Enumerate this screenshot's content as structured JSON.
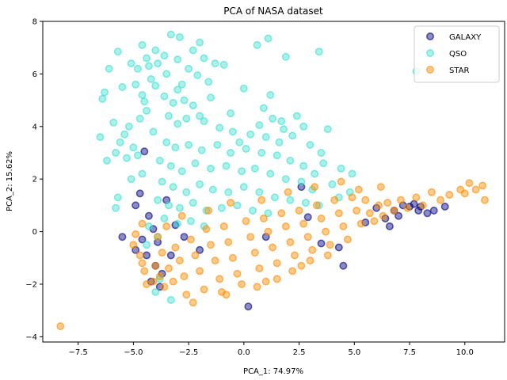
{
  "chart_data": {
    "type": "scatter",
    "title": "PCA of NASA dataset",
    "xlabel": "PCA_1: 74.97%",
    "ylabel": "PCA_2: 15.62%",
    "xlim": [
      -9.1,
      11.8
    ],
    "ylim": [
      -4.2,
      8.0
    ],
    "xticks": [
      -7.5,
      -5.0,
      -2.5,
      0.0,
      2.5,
      5.0,
      7.5,
      10.0
    ],
    "xtick_labels": [
      "−7.5",
      "−5.0",
      "−2.5",
      "0.0",
      "2.5",
      "5.0",
      "7.5",
      "10.0"
    ],
    "yticks": [
      -4,
      -2,
      0,
      2,
      4,
      6,
      8
    ],
    "ytick_labels": [
      "−4",
      "−2",
      "0",
      "2",
      "4",
      "6",
      "8"
    ],
    "grid": false,
    "legend_position": "top-right",
    "series": [
      {
        "name": "GALAXY",
        "color": "#000080",
        "alpha": 0.5,
        "points": [
          [
            -4.5,
            3.05
          ],
          [
            -4.7,
            1.45
          ],
          [
            -4.9,
            1.0
          ],
          [
            -4.3,
            0.6
          ],
          [
            -5.5,
            -0.2
          ],
          [
            -4.9,
            -0.7
          ],
          [
            -4.4,
            -0.9
          ],
          [
            -4.0,
            -1.3
          ],
          [
            -4.2,
            -1.9
          ],
          [
            -3.7,
            -1.6
          ],
          [
            -3.5,
            1.2
          ],
          [
            -4.1,
            0.1
          ],
          [
            -3.9,
            -0.4
          ],
          [
            -4.6,
            -0.3
          ],
          [
            -3.3,
            -0.9
          ],
          [
            -3.8,
            -2.1
          ],
          [
            0.2,
            -2.85
          ],
          [
            4.5,
            -1.3
          ],
          [
            4.3,
            -0.6
          ],
          [
            2.6,
            1.7
          ],
          [
            6.0,
            0.9
          ],
          [
            6.4,
            0.5
          ],
          [
            6.8,
            0.8
          ],
          [
            7.2,
            1.0
          ],
          [
            7.5,
            0.95
          ],
          [
            7.9,
            0.8
          ],
          [
            8.3,
            0.7
          ],
          [
            8.6,
            0.8
          ],
          [
            9.1,
            0.95
          ],
          [
            7.0,
            0.6
          ],
          [
            6.6,
            0.2
          ],
          [
            5.5,
            0.35
          ],
          [
            7.7,
            1.05
          ],
          [
            8.0,
            0.95
          ],
          [
            3.5,
            -0.45
          ],
          [
            2.9,
            0.55
          ],
          [
            -2.7,
            -0.2
          ],
          [
            -3.1,
            0.25
          ],
          [
            -2.0,
            -0.7
          ],
          [
            1.0,
            -0.2
          ]
        ]
      },
      {
        "name": "QSO",
        "color": "#40E0D0",
        "alpha": 0.5,
        "points": [
          [
            -3.3,
            7.5
          ],
          [
            -2.9,
            7.4
          ],
          [
            -2.0,
            7.2
          ],
          [
            0.6,
            7.1
          ],
          [
            1.1,
            7.35
          ],
          [
            -4.6,
            7.1
          ],
          [
            -4.0,
            6.9
          ],
          [
            -3.6,
            6.7
          ],
          [
            -4.4,
            6.6
          ],
          [
            -5.1,
            6.4
          ],
          [
            -4.8,
            6.2
          ],
          [
            -3.9,
            6.4
          ],
          [
            -3.5,
            6.0
          ],
          [
            -4.2,
            5.8
          ],
          [
            -4.9,
            5.6
          ],
          [
            -5.5,
            5.5
          ],
          [
            -6.3,
            5.3
          ],
          [
            -6.4,
            5.05
          ],
          [
            -5.7,
            6.85
          ],
          [
            -6.1,
            6.2
          ],
          [
            -1.8,
            6.6
          ],
          [
            -1.3,
            6.4
          ],
          [
            -0.9,
            6.35
          ],
          [
            1.9,
            6.65
          ],
          [
            3.4,
            6.85
          ],
          [
            -2.5,
            6.2
          ],
          [
            -2.1,
            5.95
          ],
          [
            -1.6,
            5.7
          ],
          [
            0.0,
            5.45
          ],
          [
            1.2,
            5.2
          ],
          [
            -3.0,
            5.4
          ],
          [
            -2.7,
            5.0
          ],
          [
            -2.3,
            4.8
          ],
          [
            -4.4,
            4.6
          ],
          [
            -4.7,
            4.3
          ],
          [
            -5.2,
            4.0
          ],
          [
            -5.9,
            4.15
          ],
          [
            -5.4,
            3.7
          ],
          [
            -5.6,
            3.4
          ],
          [
            -5.0,
            3.2
          ],
          [
            -4.8,
            2.9
          ],
          [
            -5.3,
            2.8
          ],
          [
            -4.6,
            2.2
          ],
          [
            -5.1,
            2.0
          ],
          [
            -5.7,
            1.3
          ],
          [
            -5.8,
            0.9
          ],
          [
            -3.4,
            4.4
          ],
          [
            -3.0,
            4.1
          ],
          [
            -2.6,
            4.3
          ],
          [
            -1.8,
            4.2
          ],
          [
            -1.1,
            3.95
          ],
          [
            -0.5,
            3.8
          ],
          [
            0.3,
            3.7
          ],
          [
            1.0,
            3.6
          ],
          [
            1.6,
            3.4
          ],
          [
            2.2,
            3.65
          ],
          [
            2.7,
            4.0
          ],
          [
            2.4,
            4.4
          ],
          [
            1.7,
            4.2
          ],
          [
            0.7,
            4.05
          ],
          [
            -3.5,
            3.4
          ],
          [
            -3.1,
            3.2
          ],
          [
            -2.5,
            3.3
          ],
          [
            -1.9,
            3.1
          ],
          [
            -1.2,
            3.3
          ],
          [
            -0.6,
            3.0
          ],
          [
            0.1,
            3.15
          ],
          [
            0.8,
            3.0
          ],
          [
            1.5,
            2.9
          ],
          [
            2.1,
            2.7
          ],
          [
            2.7,
            2.5
          ],
          [
            3.2,
            2.2
          ],
          [
            3.6,
            2.6
          ],
          [
            4.0,
            1.8
          ],
          [
            4.3,
            1.3
          ],
          [
            -3.8,
            2.7
          ],
          [
            -3.3,
            2.5
          ],
          [
            -2.8,
            2.3
          ],
          [
            -2.2,
            2.6
          ],
          [
            -1.5,
            2.4
          ],
          [
            -0.8,
            2.5
          ],
          [
            -0.1,
            2.3
          ],
          [
            0.5,
            2.4
          ],
          [
            1.2,
            2.2
          ],
          [
            1.9,
            2.0
          ],
          [
            2.6,
            1.9
          ],
          [
            3.1,
            1.6
          ],
          [
            -3.7,
            1.9
          ],
          [
            -3.2,
            1.7
          ],
          [
            -2.6,
            1.5
          ],
          [
            -2.0,
            1.8
          ],
          [
            -1.4,
            1.6
          ],
          [
            -0.7,
            1.5
          ],
          [
            0.0,
            1.7
          ],
          [
            0.7,
            1.5
          ],
          [
            1.4,
            1.3
          ],
          [
            2.1,
            1.2
          ],
          [
            2.8,
            1.1
          ],
          [
            3.4,
            1.0
          ],
          [
            -3.9,
            1.2
          ],
          [
            -3.4,
            1.0
          ],
          [
            -2.9,
            0.9
          ],
          [
            -2.3,
            1.1
          ],
          [
            -1.7,
            0.8
          ],
          [
            -1.0,
            0.9
          ],
          [
            -0.3,
            1.0
          ],
          [
            0.4,
            0.8
          ],
          [
            1.1,
            0.7
          ],
          [
            -3.6,
            0.5
          ],
          [
            -3.0,
            0.3
          ],
          [
            -2.4,
            0.4
          ],
          [
            -1.8,
            0.2
          ],
          [
            -4.3,
            0.2
          ],
          [
            -3.9,
            -0.2
          ],
          [
            -4.4,
            -0.5
          ],
          [
            -3.3,
            -2.6
          ],
          [
            -4.0,
            -2.3
          ],
          [
            -3.8,
            -1.8
          ],
          [
            -4.1,
            3.8
          ],
          [
            -3.2,
            4.9
          ],
          [
            -2.0,
            4.4
          ],
          [
            -0.2,
            3.4
          ],
          [
            1.3,
            4.3
          ],
          [
            3.0,
            3.3
          ],
          [
            3.5,
            3.0
          ],
          [
            4.8,
            1.5
          ],
          [
            4.4,
            2.4
          ],
          [
            4.9,
            2.2
          ],
          [
            3.8,
            3.9
          ],
          [
            -4.3,
            6.3
          ],
          [
            -3.0,
            6.55
          ],
          [
            -2.3,
            6.9
          ],
          [
            -4.6,
            5.2
          ],
          [
            -4.0,
            5.55
          ],
          [
            -5.8,
            3.0
          ],
          [
            -6.5,
            3.6
          ],
          [
            -6.2,
            2.7
          ],
          [
            -3.6,
            5.15
          ],
          [
            -2.8,
            5.6
          ],
          [
            7.8,
            6.1
          ],
          [
            -0.6,
            4.5
          ],
          [
            0.9,
            4.7
          ],
          [
            1.8,
            3.9
          ],
          [
            -1.5,
            5.1
          ],
          [
            -4.5,
            4.95
          ]
        ]
      },
      {
        "name": "STAR",
        "color": "#FF8C00",
        "alpha": 0.5,
        "points": [
          [
            -8.3,
            -3.6
          ],
          [
            -4.7,
            -0.9
          ],
          [
            -4.5,
            -1.5
          ],
          [
            -4.4,
            -2.0
          ],
          [
            -4.6,
            -1.2
          ],
          [
            -4.1,
            -1.9
          ],
          [
            -4.0,
            -1.3
          ],
          [
            -3.8,
            -1.7
          ],
          [
            -3.6,
            -2.1
          ],
          [
            -3.7,
            -0.8
          ],
          [
            -3.4,
            -1.4
          ],
          [
            -3.2,
            -1.9
          ],
          [
            -3.1,
            -0.6
          ],
          [
            -2.9,
            -1.1
          ],
          [
            -2.7,
            -1.7
          ],
          [
            -2.6,
            -2.4
          ],
          [
            -2.4,
            -0.3
          ],
          [
            -2.2,
            -0.9
          ],
          [
            -2.0,
            -1.5
          ],
          [
            -1.8,
            -2.2
          ],
          [
            -1.7,
            0.1
          ],
          [
            -1.5,
            -0.5
          ],
          [
            -1.3,
            -1.1
          ],
          [
            -1.1,
            -1.8
          ],
          [
            -0.9,
            0.2
          ],
          [
            -0.7,
            -0.4
          ],
          [
            -0.5,
            -1.0
          ],
          [
            -0.3,
            -1.6
          ],
          [
            -0.1,
            -2.0
          ],
          [
            0.1,
            0.4
          ],
          [
            0.3,
            -0.2
          ],
          [
            0.5,
            -0.8
          ],
          [
            0.7,
            -1.4
          ],
          [
            0.9,
            0.5
          ],
          [
            1.1,
            0.0
          ],
          [
            1.3,
            -0.6
          ],
          [
            1.5,
            -1.2
          ],
          [
            1.7,
            0.7
          ],
          [
            1.9,
            0.2
          ],
          [
            2.1,
            -0.4
          ],
          [
            2.3,
            -0.9
          ],
          [
            2.5,
            0.8
          ],
          [
            2.7,
            0.3
          ],
          [
            2.9,
            -0.2
          ],
          [
            3.1,
            -0.7
          ],
          [
            3.3,
            1.0
          ],
          [
            3.5,
            0.5
          ],
          [
            3.7,
            0.0
          ],
          [
            3.9,
            -0.5
          ],
          [
            4.1,
            1.2
          ],
          [
            4.3,
            0.7
          ],
          [
            4.5,
            0.2
          ],
          [
            4.7,
            -0.3
          ],
          [
            4.9,
            1.3
          ],
          [
            5.1,
            0.8
          ],
          [
            5.3,
            0.3
          ],
          [
            5.5,
            1.2
          ],
          [
            5.7,
            0.7
          ],
          [
            5.9,
            0.4
          ],
          [
            6.1,
            1.0
          ],
          [
            6.3,
            0.6
          ],
          [
            6.5,
            1.1
          ],
          [
            6.8,
            0.8
          ],
          [
            7.1,
            1.2
          ],
          [
            7.4,
            0.9
          ],
          [
            7.8,
            1.3
          ],
          [
            8.1,
            1.0
          ],
          [
            8.5,
            1.5
          ],
          [
            8.9,
            1.2
          ],
          [
            9.3,
            1.4
          ],
          [
            9.8,
            1.6
          ],
          [
            10.2,
            1.85
          ],
          [
            10.5,
            1.6
          ],
          [
            10.8,
            1.75
          ],
          [
            10.9,
            1.2
          ],
          [
            10.0,
            1.45
          ],
          [
            -4.9,
            -0.1
          ],
          [
            -5.0,
            -0.5
          ],
          [
            -4.6,
            0.3
          ],
          [
            -3.9,
            -0.2
          ],
          [
            -2.3,
            -2.7
          ],
          [
            -0.8,
            -2.4
          ],
          [
            0.6,
            -2.1
          ],
          [
            1.5,
            -1.8
          ],
          [
            2.2,
            -1.5
          ],
          [
            3.0,
            -1.1
          ],
          [
            3.8,
            -0.9
          ],
          [
            -1.6,
            0.8
          ],
          [
            -0.6,
            1.1
          ],
          [
            0.8,
            1.2
          ],
          [
            2.0,
            1.5
          ],
          [
            3.2,
            1.7
          ],
          [
            4.4,
            1.9
          ],
          [
            5.2,
            1.6
          ],
          [
            6.2,
            1.7
          ],
          [
            -2.8,
            0.6
          ],
          [
            -3.5,
            0.2
          ],
          [
            -1.0,
            -2.3
          ],
          [
            1.0,
            -1.9
          ],
          [
            2.6,
            -1.3
          ]
        ]
      }
    ]
  }
}
